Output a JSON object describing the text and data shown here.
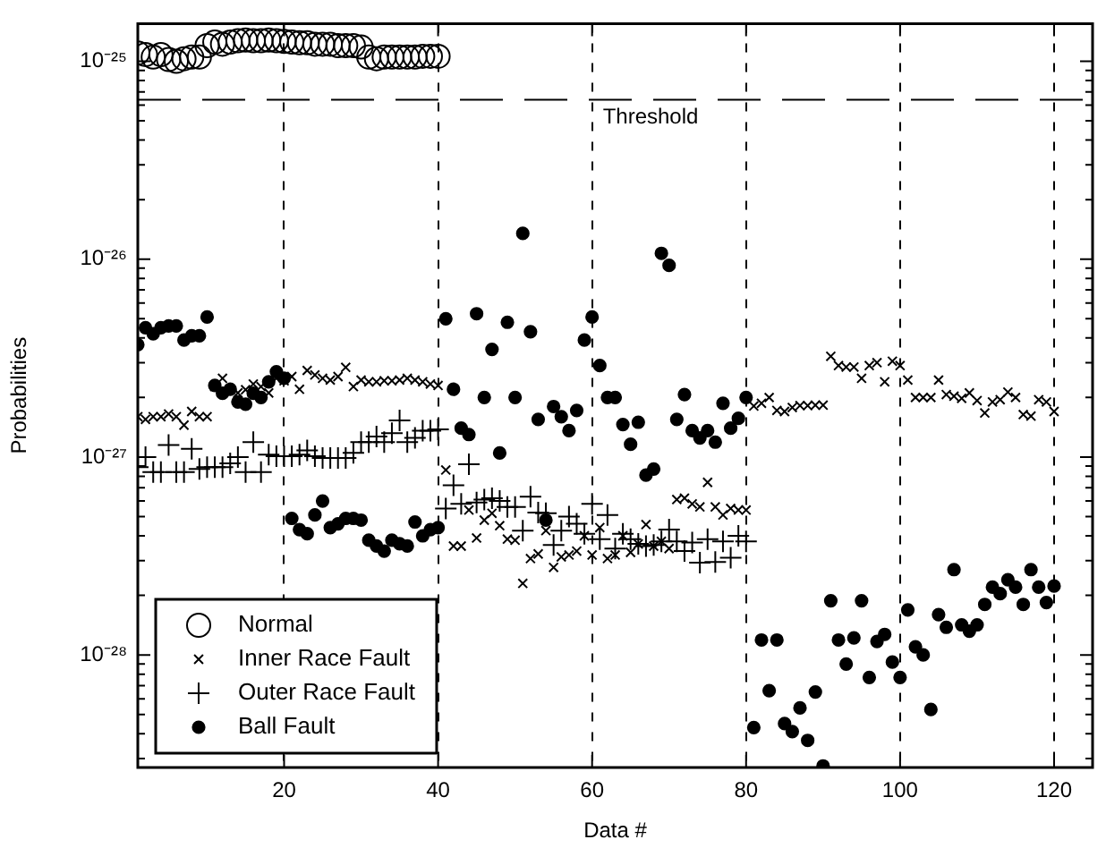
{
  "chart_data": {
    "type": "scatter",
    "xlabel": "Data #",
    "ylabel": "Probabilities",
    "log": "y",
    "grid": "x",
    "legend": "bottom left",
    "xlim": [
      1,
      125
    ],
    "xticks": [
      20,
      40,
      60,
      80,
      100,
      120
    ],
    "ylim": [
      2.7e-29,
      1.55e-25
    ],
    "yticks": [
      {
        "value": 3e-29,
        "label": null
      },
      {
        "value": 4e-29,
        "label": null
      },
      {
        "value": 5e-29,
        "label": null
      },
      {
        "value": 6e-29,
        "label": null
      },
      {
        "value": 7e-29,
        "label": null
      },
      {
        "value": 8e-29,
        "label": null
      },
      {
        "value": 9e-29,
        "label": null
      },
      {
        "value": 1e-28,
        "label": "10⁻²⁸"
      },
      {
        "value": 2e-28,
        "label": null
      },
      {
        "value": 3e-28,
        "label": null
      },
      {
        "value": 4e-28,
        "label": null
      },
      {
        "value": 5e-28,
        "label": null
      },
      {
        "value": 6e-28,
        "label": null
      },
      {
        "value": 7e-28,
        "label": null
      },
      {
        "value": 8e-28,
        "label": null
      },
      {
        "value": 9e-28,
        "label": null
      },
      {
        "value": 1e-27,
        "label": "10⁻²⁷"
      },
      {
        "value": 2e-27,
        "label": null
      },
      {
        "value": 3e-27,
        "label": null
      },
      {
        "value": 4e-27,
        "label": null
      },
      {
        "value": 5e-27,
        "label": null
      },
      {
        "value": 6e-27,
        "label": null
      },
      {
        "value": 7e-27,
        "label": null
      },
      {
        "value": 8e-27,
        "label": null
      },
      {
        "value": 9e-27,
        "label": null
      },
      {
        "value": 1e-26,
        "label": "10⁻²⁶"
      },
      {
        "value": 2e-26,
        "label": null
      },
      {
        "value": 3e-26,
        "label": null
      },
      {
        "value": 4e-26,
        "label": null
      },
      {
        "value": 5e-26,
        "label": null
      },
      {
        "value": 6e-26,
        "label": null
      },
      {
        "value": 7e-26,
        "label": null
      },
      {
        "value": 8e-26,
        "label": null
      },
      {
        "value": 9e-26,
        "label": null
      },
      {
        "value": 1e-25,
        "label": "10⁻²⁵"
      }
    ],
    "ref_lines": [
      {
        "axis": "y",
        "value": 6.4e-26,
        "label": "Threshold",
        "line_style": "dashed",
        "color": "#000000"
      }
    ],
    "series": [
      {
        "name": "Normal",
        "color": "#000000",
        "marker": "circle",
        "x": [
          1,
          2,
          3,
          4,
          5,
          6,
          7,
          8,
          9,
          10,
          11,
          12,
          13,
          14,
          15,
          16,
          17,
          18,
          19,
          20,
          21,
          22,
          23,
          24,
          25,
          26,
          27,
          28,
          29,
          30,
          31,
          32,
          33,
          34,
          35,
          36,
          37,
          38,
          39,
          40
        ],
        "values": [
          1.1e-25,
          1.08e-25,
          1.05e-25,
          1.08e-25,
          1.02e-25,
          1e-25,
          1.03e-25,
          1.05e-25,
          1.05e-25,
          1.2e-25,
          1.25e-25,
          1.22e-25,
          1.25e-25,
          1.27e-25,
          1.28e-25,
          1.27e-25,
          1.27e-25,
          1.28e-25,
          1.27e-25,
          1.26e-25,
          1.25e-25,
          1.24e-25,
          1.24e-25,
          1.22e-25,
          1.22e-25,
          1.22e-25,
          1.2e-25,
          1.2e-25,
          1.2e-25,
          1.18e-25,
          1.05e-25,
          1.03e-25,
          1.05e-25,
          1.05e-25,
          1.05e-25,
          1.05e-25,
          1.05e-25,
          1.06e-25,
          1.06e-25,
          1.06e-25
        ]
      },
      {
        "name": "Inner Race Fault",
        "color": "#000000",
        "marker": "cross",
        "x": [
          1,
          2,
          3,
          4,
          5,
          6,
          7,
          8,
          9,
          10,
          11,
          12,
          13,
          14,
          15,
          16,
          17,
          18,
          19,
          20,
          21,
          22,
          23,
          24,
          25,
          26,
          27,
          28,
          29,
          30,
          31,
          32,
          33,
          34,
          35,
          36,
          37,
          38,
          39,
          40,
          41,
          42,
          43,
          44,
          45,
          46,
          47,
          48,
          49,
          50,
          51,
          52,
          53,
          54,
          55,
          56,
          57,
          58,
          59,
          60,
          61,
          62,
          63,
          64,
          65,
          66,
          67,
          68,
          69,
          70,
          71,
          72,
          73,
          74,
          75,
          76,
          77,
          78,
          79,
          80,
          81,
          82,
          83,
          84,
          85,
          86,
          87,
          88,
          89,
          90,
          91,
          92,
          93,
          94,
          95,
          96,
          97,
          98,
          99,
          100,
          101,
          102,
          103,
          104,
          105,
          106,
          107,
          108,
          109,
          110,
          111,
          112,
          113,
          114,
          115,
          116,
          117,
          118,
          119,
          120
        ],
        "values": [
          1.6e-27,
          1.55e-27,
          1.6e-27,
          1.6e-27,
          1.65e-27,
          1.6e-27,
          1.45e-27,
          1.7e-27,
          1.6e-27,
          1.6e-27,
          2.27e-27,
          2.5e-27,
          2.19e-27,
          2.11e-27,
          2.19e-27,
          2.34e-27,
          2.27e-27,
          2.11e-27,
          2.5e-27,
          2.43e-27,
          2.55e-27,
          2.2e-27,
          2.74e-27,
          2.6e-27,
          2.5e-27,
          2.45e-27,
          2.55e-27,
          2.84e-27,
          2.27e-27,
          2.45e-27,
          2.4e-27,
          2.4e-27,
          2.43e-27,
          2.43e-27,
          2.45e-27,
          2.5e-27,
          2.45e-27,
          2.4e-27,
          2.34e-27,
          2.3e-27,
          8.6e-28,
          3.55e-28,
          3.55e-28,
          5.4e-28,
          3.9e-28,
          4.8e-28,
          5.2e-28,
          4.5e-28,
          3.85e-28,
          3.8e-28,
          2.3e-28,
          3.07e-28,
          3.24e-28,
          4.25e-28,
          2.77e-28,
          3.13e-28,
          3.2e-28,
          3.35e-28,
          4e-28,
          3.2e-28,
          4.4e-28,
          3.07e-28,
          3.2e-28,
          4e-28,
          3.3e-28,
          3.64e-28,
          4.56e-28,
          3.55e-28,
          3.75e-28,
          3.45e-28,
          6.1e-28,
          6.2e-28,
          5.8e-28,
          5.6e-28,
          7.45e-28,
          5.6e-28,
          5.1e-28,
          5.5e-28,
          5.4e-28,
          5.4e-28,
          1.81e-27,
          1.87e-27,
          2e-27,
          1.72e-27,
          1.7e-27,
          1.78e-27,
          1.82e-27,
          1.82e-27,
          1.83e-27,
          1.83e-27,
          3.23e-27,
          2.9e-27,
          2.85e-27,
          2.85e-27,
          2.5e-27,
          2.9e-27,
          3e-27,
          2.4e-27,
          3.05e-27,
          2.9e-27,
          2.45e-27,
          2e-27,
          2e-27,
          2e-27,
          2.45e-27,
          2.07e-27,
          2.03e-27,
          1.98e-27,
          2.11e-27,
          1.93e-27,
          1.67e-27,
          1.9e-27,
          1.95e-27,
          2.13e-27,
          2e-27,
          1.64e-27,
          1.61e-27,
          1.95e-27,
          1.9e-27,
          1.7e-27
        ]
      },
      {
        "name": "Outer Race Fault",
        "color": "#000000",
        "marker": "plus",
        "x": [
          1,
          2,
          3,
          4,
          5,
          6,
          7,
          8,
          9,
          10,
          11,
          12,
          13,
          14,
          15,
          16,
          17,
          18,
          19,
          20,
          21,
          22,
          23,
          24,
          25,
          26,
          27,
          28,
          29,
          30,
          31,
          32,
          33,
          34,
          35,
          36,
          37,
          38,
          39,
          40,
          41,
          42,
          43,
          44,
          45,
          46,
          47,
          48,
          49,
          50,
          51,
          52,
          53,
          54,
          55,
          56,
          57,
          58,
          59,
          60,
          61,
          62,
          63,
          64,
          65,
          66,
          67,
          68,
          69,
          70,
          71,
          72,
          73,
          74,
          75,
          76,
          77,
          78,
          79,
          80
        ],
        "values": [
          8.9e-28,
          1e-27,
          8.4e-28,
          8.4e-28,
          1.15e-27,
          8.4e-28,
          8.4e-28,
          1.1e-27,
          8.7e-28,
          8.9e-28,
          8.9e-28,
          8.9e-28,
          9.3e-28,
          1e-27,
          8.4e-28,
          1.19e-27,
          8.4e-28,
          1.03e-27,
          1.01e-27,
          1.01e-27,
          1.01e-27,
          1.03e-27,
          1.08e-27,
          1.01e-27,
          9.9e-28,
          9.9e-28,
          9.9e-28,
          9.9e-28,
          1.05e-27,
          1.19e-27,
          1.19e-27,
          1.27e-27,
          1.19e-27,
          1.32e-27,
          1.53e-27,
          1.19e-27,
          1.25e-27,
          1.36e-27,
          1.36e-27,
          1.38e-27,
          5.5e-28,
          7.2e-28,
          5.8e-28,
          9.2e-28,
          5.9e-28,
          6.1e-28,
          6.2e-28,
          6e-28,
          5.6e-28,
          5.6e-28,
          4.25e-28,
          6.3e-28,
          5.25e-28,
          5.2e-28,
          3.6e-28,
          4.25e-28,
          5e-28,
          4.6e-28,
          4.1e-28,
          5.8e-28,
          3.85e-28,
          5.1e-28,
          3.45e-28,
          4.1e-28,
          3.85e-28,
          3.64e-28,
          3.55e-28,
          3.6e-28,
          3.75e-28,
          4.3e-28,
          3.75e-28,
          3.35e-28,
          3.7e-28,
          2.93e-28,
          3.85e-28,
          2.95e-28,
          3.75e-28,
          3.1e-28,
          4e-28,
          3.75e-28
        ]
      },
      {
        "name": "Ball Fault",
        "color": "#000000",
        "marker": "dot",
        "x": [
          1,
          2,
          3,
          4,
          5,
          6,
          7,
          8,
          9,
          10,
          11,
          12,
          13,
          14,
          15,
          16,
          17,
          18,
          19,
          20,
          21,
          22,
          23,
          24,
          25,
          26,
          27,
          28,
          29,
          30,
          31,
          32,
          33,
          34,
          35,
          36,
          37,
          38,
          39,
          40,
          41,
          42,
          43,
          44,
          45,
          46,
          47,
          48,
          49,
          50,
          51,
          52,
          53,
          54,
          55,
          56,
          57,
          58,
          59,
          60,
          61,
          62,
          63,
          64,
          65,
          66,
          67,
          68,
          69,
          70,
          71,
          72,
          73,
          74,
          75,
          76,
          77,
          78,
          79,
          80,
          81,
          82,
          83,
          84,
          85,
          86,
          87,
          88,
          89,
          90,
          91,
          92,
          93,
          94,
          95,
          96,
          97,
          98,
          99,
          100,
          101,
          102,
          103,
          104,
          105,
          106,
          107,
          108,
          109,
          110,
          111,
          112,
          113,
          114,
          115,
          116,
          117,
          118,
          119,
          120
        ],
        "values": [
          3.7e-27,
          4.5e-27,
          4.2e-27,
          4.5e-27,
          4.6e-27,
          4.6e-27,
          3.9e-27,
          4.1e-27,
          4.1e-27,
          5.1e-27,
          2.3e-27,
          2.1e-27,
          2.2e-27,
          1.9e-27,
          1.85e-27,
          2.1e-27,
          2e-27,
          2.4e-27,
          2.7e-27,
          2.5e-27,
          4.9e-28,
          4.3e-28,
          4.1e-28,
          5.1e-28,
          6e-28,
          4.4e-28,
          4.6e-28,
          4.9e-28,
          4.9e-28,
          4.8e-28,
          3.8e-28,
          3.55e-28,
          3.35e-28,
          3.8e-28,
          3.65e-28,
          3.55e-28,
          4.7e-28,
          4e-28,
          4.3e-28,
          4.4e-28,
          5e-27,
          2.2e-27,
          1.4e-27,
          1.3e-27,
          5.3e-27,
          2e-27,
          3.5e-27,
          1.05e-27,
          4.8e-27,
          2e-27,
          1.35e-26,
          4.3e-27,
          1.55e-27,
          4.8e-28,
          1.8e-27,
          1.6e-27,
          1.36e-27,
          1.72e-27,
          3.9e-27,
          5.1e-27,
          2.9e-27,
          2e-27,
          2e-27,
          1.46e-27,
          1.16e-27,
          1.5e-27,
          8.1e-28,
          8.7e-28,
          1.07e-26,
          9.3e-27,
          1.55e-27,
          2.07e-27,
          1.36e-27,
          1.25e-27,
          1.36e-27,
          1.19e-27,
          1.87e-27,
          1.4e-27,
          1.57e-27,
          2e-27,
          4.3e-29,
          1.19e-28,
          6.6e-29,
          1.19e-28,
          4.5e-29,
          4.1e-29,
          5.4e-29,
          3.7e-29,
          6.5e-29,
          2.75e-29,
          1.88e-28,
          1.19e-28,
          9e-29,
          1.22e-28,
          1.88e-28,
          7.7e-29,
          1.17e-28,
          1.27e-28,
          9.2e-29,
          7.7e-29,
          1.69e-28,
          1.1e-28,
          1e-28,
          5.3e-29,
          1.6e-28,
          1.38e-28,
          2.7e-28,
          1.42e-28,
          1.32e-28,
          1.42e-28,
          1.8e-28,
          2.2e-28,
          2.04e-28,
          2.4e-28,
          2.2e-28,
          1.8e-28,
          2.7e-28,
          2.2e-28,
          1.84e-28,
          2.23e-28
        ]
      }
    ]
  }
}
